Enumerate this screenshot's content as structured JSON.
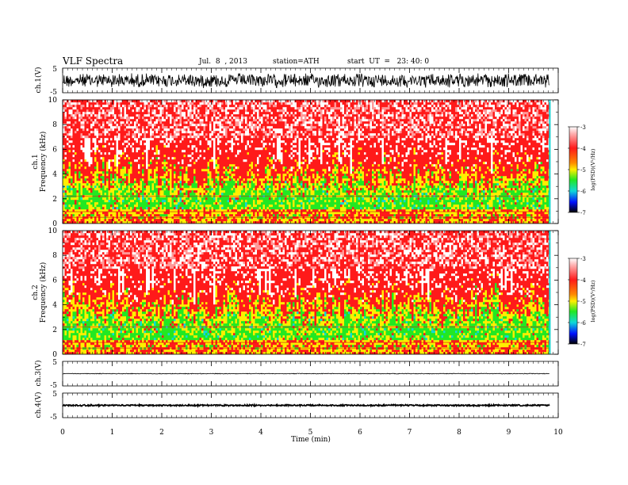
{
  "header": {
    "title": "VLF Spectra",
    "date": "Jul.  8  , 2013",
    "station": "station=ATH",
    "start": "start  UT  =   23: 40: 0"
  },
  "colors": {
    "red": "#ff1a1a",
    "yellow": "#ffee00",
    "green": "#22e822",
    "cyan": "#10d8d8",
    "blue": "#0010ff",
    "black": "#000000"
  },
  "chart_data": [
    {
      "type": "line",
      "name": "ch.1 waveform",
      "ylabel": "ch.1(V)",
      "ylim": [
        -5,
        5
      ],
      "yticks": [
        "5",
        "-5"
      ],
      "amplitude": 3.2,
      "offset": 0
    },
    {
      "type": "heatmap",
      "name": "ch.1 spectrogram",
      "ylabel_channel": "ch.1",
      "ylabel": "Frequency  (kHz)",
      "ylim": [
        0,
        10
      ],
      "yticks": [
        "0",
        "2",
        "4",
        "6",
        "8",
        "10"
      ],
      "colorbar": {
        "label": "log(PSD)(V²/Hz)",
        "ticks": [
          "-3",
          "-4",
          "-5",
          "-6",
          "-7"
        ]
      }
    },
    {
      "type": "heatmap",
      "name": "ch.2 spectrogram",
      "ylabel_channel": "ch.2",
      "ylabel": "Frequency  (kHz)",
      "ylim": [
        0,
        10
      ],
      "yticks": [
        "0",
        "2",
        "4",
        "6",
        "8",
        "10"
      ],
      "colorbar": {
        "label": "log(PSD)(V²/Hz)",
        "ticks": [
          "-3",
          "-4",
          "-5",
          "-6",
          "-7"
        ]
      }
    },
    {
      "type": "line",
      "name": "ch.3 waveform",
      "ylabel": "ch.3(V)",
      "ylim": [
        -5,
        5
      ],
      "yticks": [
        "5",
        "-5"
      ],
      "amplitude": 0.15,
      "offset": 0
    },
    {
      "type": "line",
      "name": "ch.4 waveform",
      "ylabel": "ch.4(V)",
      "ylim": [
        -5,
        5
      ],
      "yticks": [
        "5",
        "-5"
      ],
      "amplitude": 0.35,
      "offset": 0
    }
  ],
  "xaxis": {
    "label": "Time  (min)",
    "range": [
      0,
      10
    ],
    "ticks": [
      "0",
      "1",
      "2",
      "3",
      "4",
      "5",
      "6",
      "7",
      "8",
      "9",
      "10"
    ],
    "data_end": 9.83
  }
}
